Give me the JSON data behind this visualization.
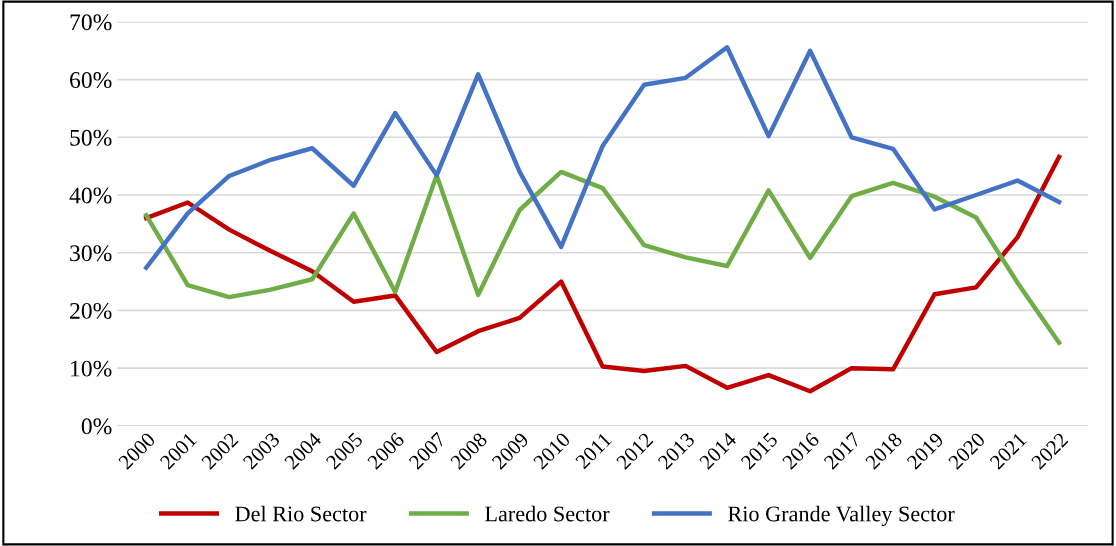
{
  "chart_data": {
    "type": "line",
    "categories": [
      "2000",
      "2001",
      "2002",
      "2003",
      "2004",
      "2005",
      "2006",
      "2007",
      "2008",
      "2009",
      "2010",
      "2011",
      "2012",
      "2013",
      "2014",
      "2015",
      "2016",
      "2017",
      "2018",
      "2019",
      "2020",
      "2021",
      "2022"
    ],
    "series": [
      {
        "name": "Del Rio Sector",
        "color": "#c00000",
        "values": [
          36,
          38.7,
          34,
          30.3,
          26.8,
          21.5,
          22.6,
          12.8,
          16.4,
          18.7,
          25,
          10.3,
          9.5,
          10.4,
          6.6,
          8.8,
          6,
          10,
          9.8,
          22.8,
          24,
          32.7,
          46.6
        ]
      },
      {
        "name": "Laredo Sector",
        "color": "#70ad47",
        "values": [
          36.5,
          24.4,
          22.3,
          23.6,
          25.4,
          36.8,
          23.2,
          43.4,
          22.7,
          37.4,
          44,
          41.2,
          31.3,
          29.2,
          27.7,
          40.8,
          29.1,
          39.8,
          42.1,
          39.7,
          36.1,
          24.8,
          14.4
        ]
      },
      {
        "name": "Rio Grande Valley Sector",
        "color": "#4472c4",
        "values": [
          27.4,
          36.8,
          43.3,
          46.1,
          48.1,
          41.6,
          54.2,
          43.4,
          60.9,
          44,
          31,
          48.5,
          59.1,
          60.3,
          65.6,
          50.2,
          65,
          50,
          48,
          37.5,
          40,
          42.5,
          38.8
        ]
      }
    ],
    "ylim": [
      0,
      70
    ],
    "yticks": [
      {
        "value": 0,
        "label": "0%"
      },
      {
        "value": 10,
        "label": "10%"
      },
      {
        "value": 20,
        "label": "20%"
      },
      {
        "value": 30,
        "label": "30%"
      },
      {
        "value": 40,
        "label": "40%"
      },
      {
        "value": 50,
        "label": "50%"
      },
      {
        "value": 60,
        "label": "60%"
      },
      {
        "value": 70,
        "label": "70%"
      }
    ],
    "grid": "y",
    "legend": "bottom",
    "marker": "none",
    "line_style": "solid"
  }
}
